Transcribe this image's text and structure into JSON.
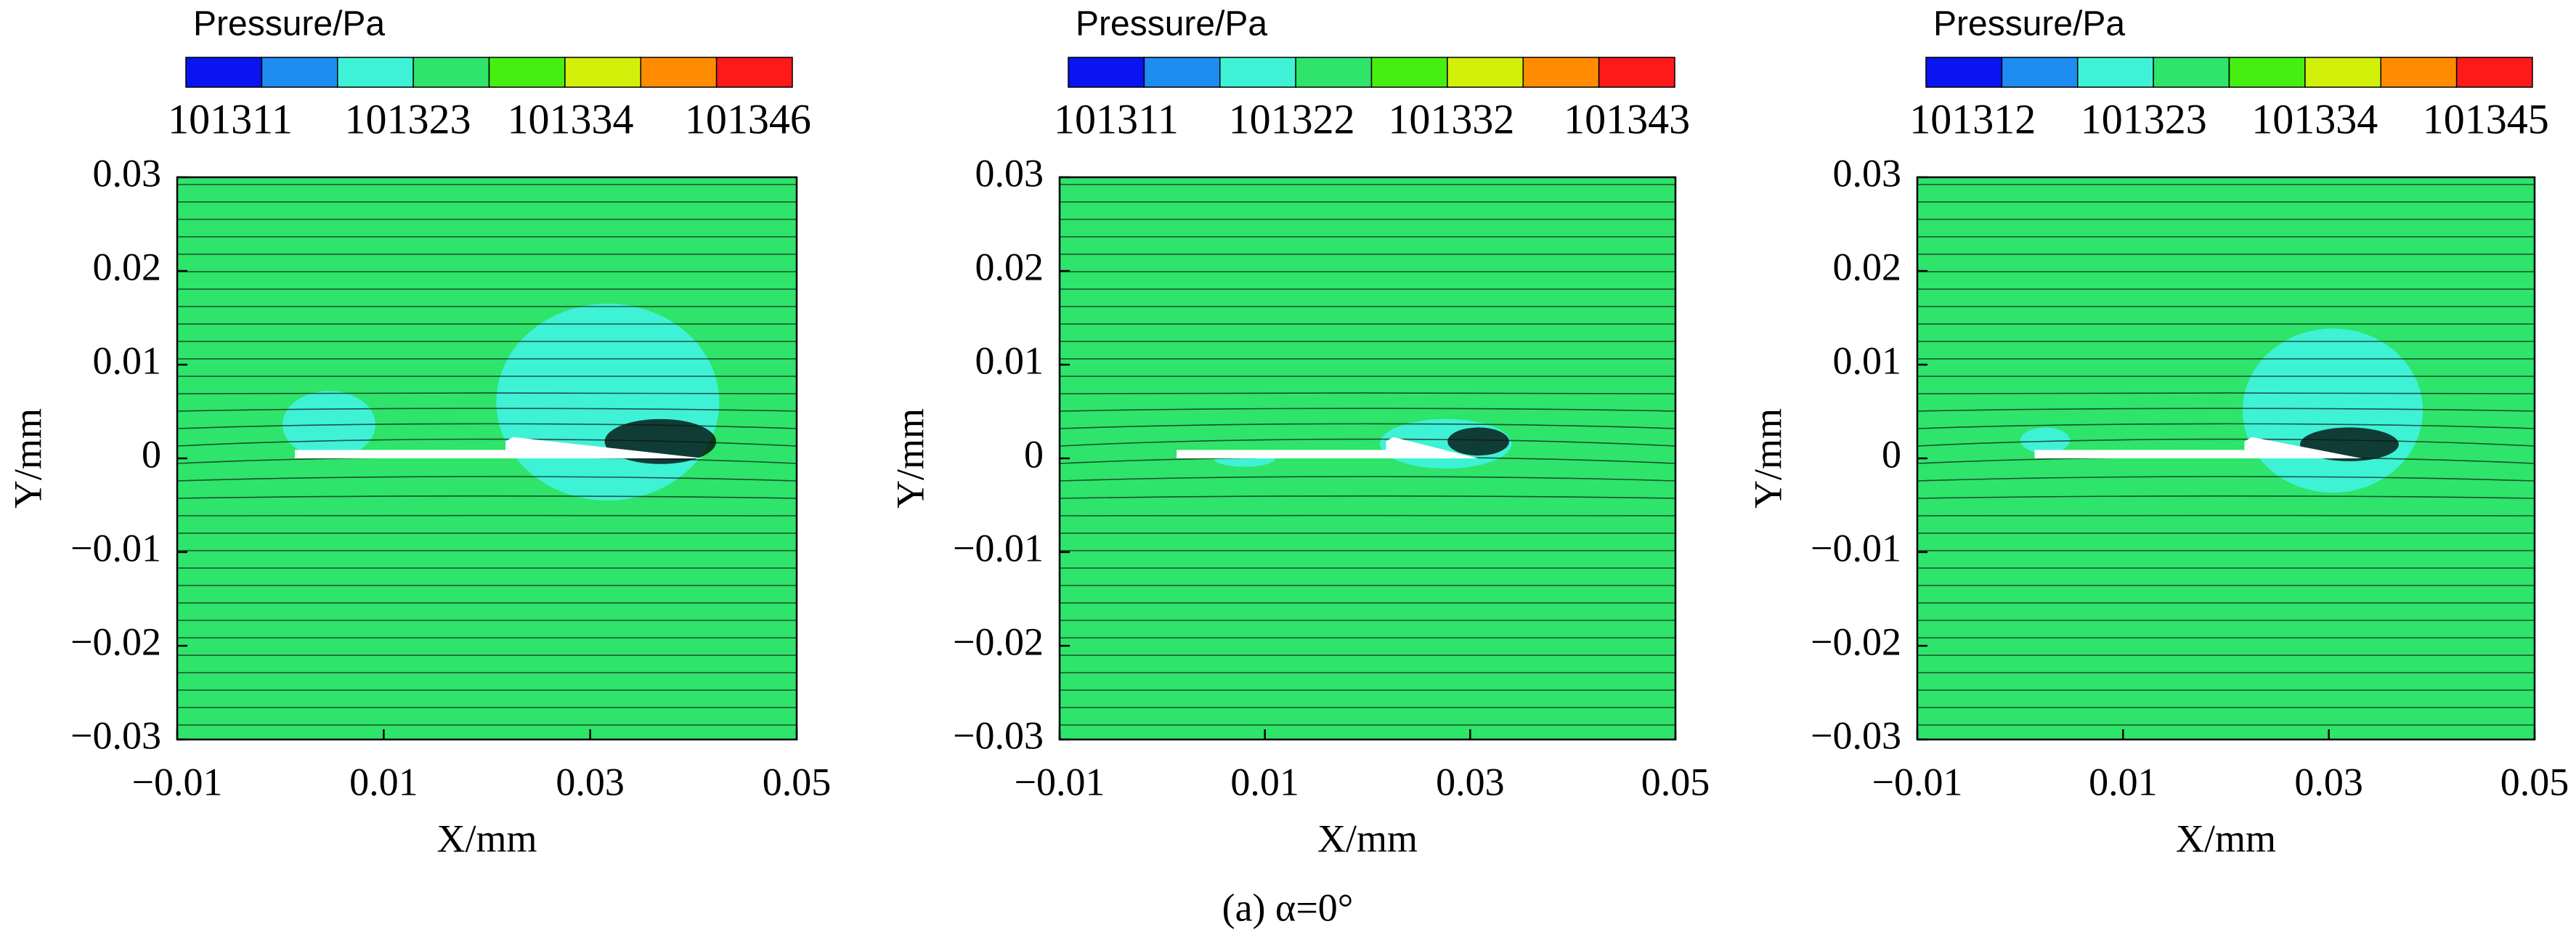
{
  "chart_data": [
    {
      "type": "contour",
      "colorbar_title": "Pressure/Pa",
      "colors": [
        "#0a14f0",
        "#1e8cf0",
        "#3ef2d6",
        "#2ee46a",
        "#46ef12",
        "#d2f00a",
        "#ff8c00",
        "#ff1a1a"
      ],
      "clim": [
        101308,
        101349
      ],
      "cticks": [
        101311,
        101323,
        101334,
        101346
      ],
      "xlabel": "X/mm",
      "ylabel": "Y/mm",
      "xlim": [
        -0.01,
        0.05
      ],
      "ylim": [
        -0.03,
        0.03
      ],
      "xticks": [
        {
          "value": -0.01,
          "label": "−0.01"
        },
        0.01,
        0.03,
        0.05
      ],
      "yticks": [
        0.03,
        0.02,
        0.01,
        0,
        {
          "value": -0.01,
          "label": "−0.01"
        },
        {
          "value": -0.02,
          "label": "−0.02"
        },
        {
          "value": -0.03,
          "label": "−0.03"
        }
      ]
    },
    {
      "type": "contour",
      "colorbar_title": "Pressure/Pa",
      "colors": [
        "#0a14f0",
        "#1e8cf0",
        "#3ef2d6",
        "#2ee46a",
        "#46ef12",
        "#d2f00a",
        "#ff8c00",
        "#ff1a1a"
      ],
      "clim": [
        101308,
        101346
      ],
      "cticks": [
        101311,
        101322,
        101332,
        101343
      ],
      "xlabel": "X/mm",
      "ylabel": "Y/mm",
      "xlim": [
        -0.01,
        0.05
      ],
      "ylim": [
        -0.03,
        0.03
      ],
      "xticks": [
        {
          "value": -0.01,
          "label": "−0.01"
        },
        0.01,
        0.03,
        0.05
      ],
      "yticks": [
        0.03,
        0.02,
        0.01,
        0,
        {
          "value": -0.01,
          "label": "−0.01"
        },
        {
          "value": -0.02,
          "label": "−0.02"
        },
        {
          "value": -0.03,
          "label": "−0.03"
        }
      ]
    },
    {
      "type": "contour",
      "colorbar_title": "Pressure/Pa",
      "colors": [
        "#0a14f0",
        "#1e8cf0",
        "#3ef2d6",
        "#2ee46a",
        "#46ef12",
        "#d2f00a",
        "#ff8c00",
        "#ff1a1a"
      ],
      "clim": [
        101309,
        101348
      ],
      "cticks": [
        101312,
        101323,
        101334,
        101345
      ],
      "xlabel": "X/mm",
      "ylabel": "Y/mm",
      "xlim": [
        -0.01,
        0.05
      ],
      "ylim": [
        -0.03,
        0.03
      ],
      "xticks": [
        {
          "value": -0.01,
          "label": "−0.01"
        },
        0.01,
        0.03,
        0.05
      ],
      "yticks": [
        0.03,
        0.02,
        0.01,
        0,
        {
          "value": -0.01,
          "label": "−0.01"
        },
        {
          "value": -0.02,
          "label": "−0.02"
        },
        {
          "value": -0.03,
          "label": "−0.03"
        }
      ]
    }
  ],
  "caption": "(a) α=0°"
}
